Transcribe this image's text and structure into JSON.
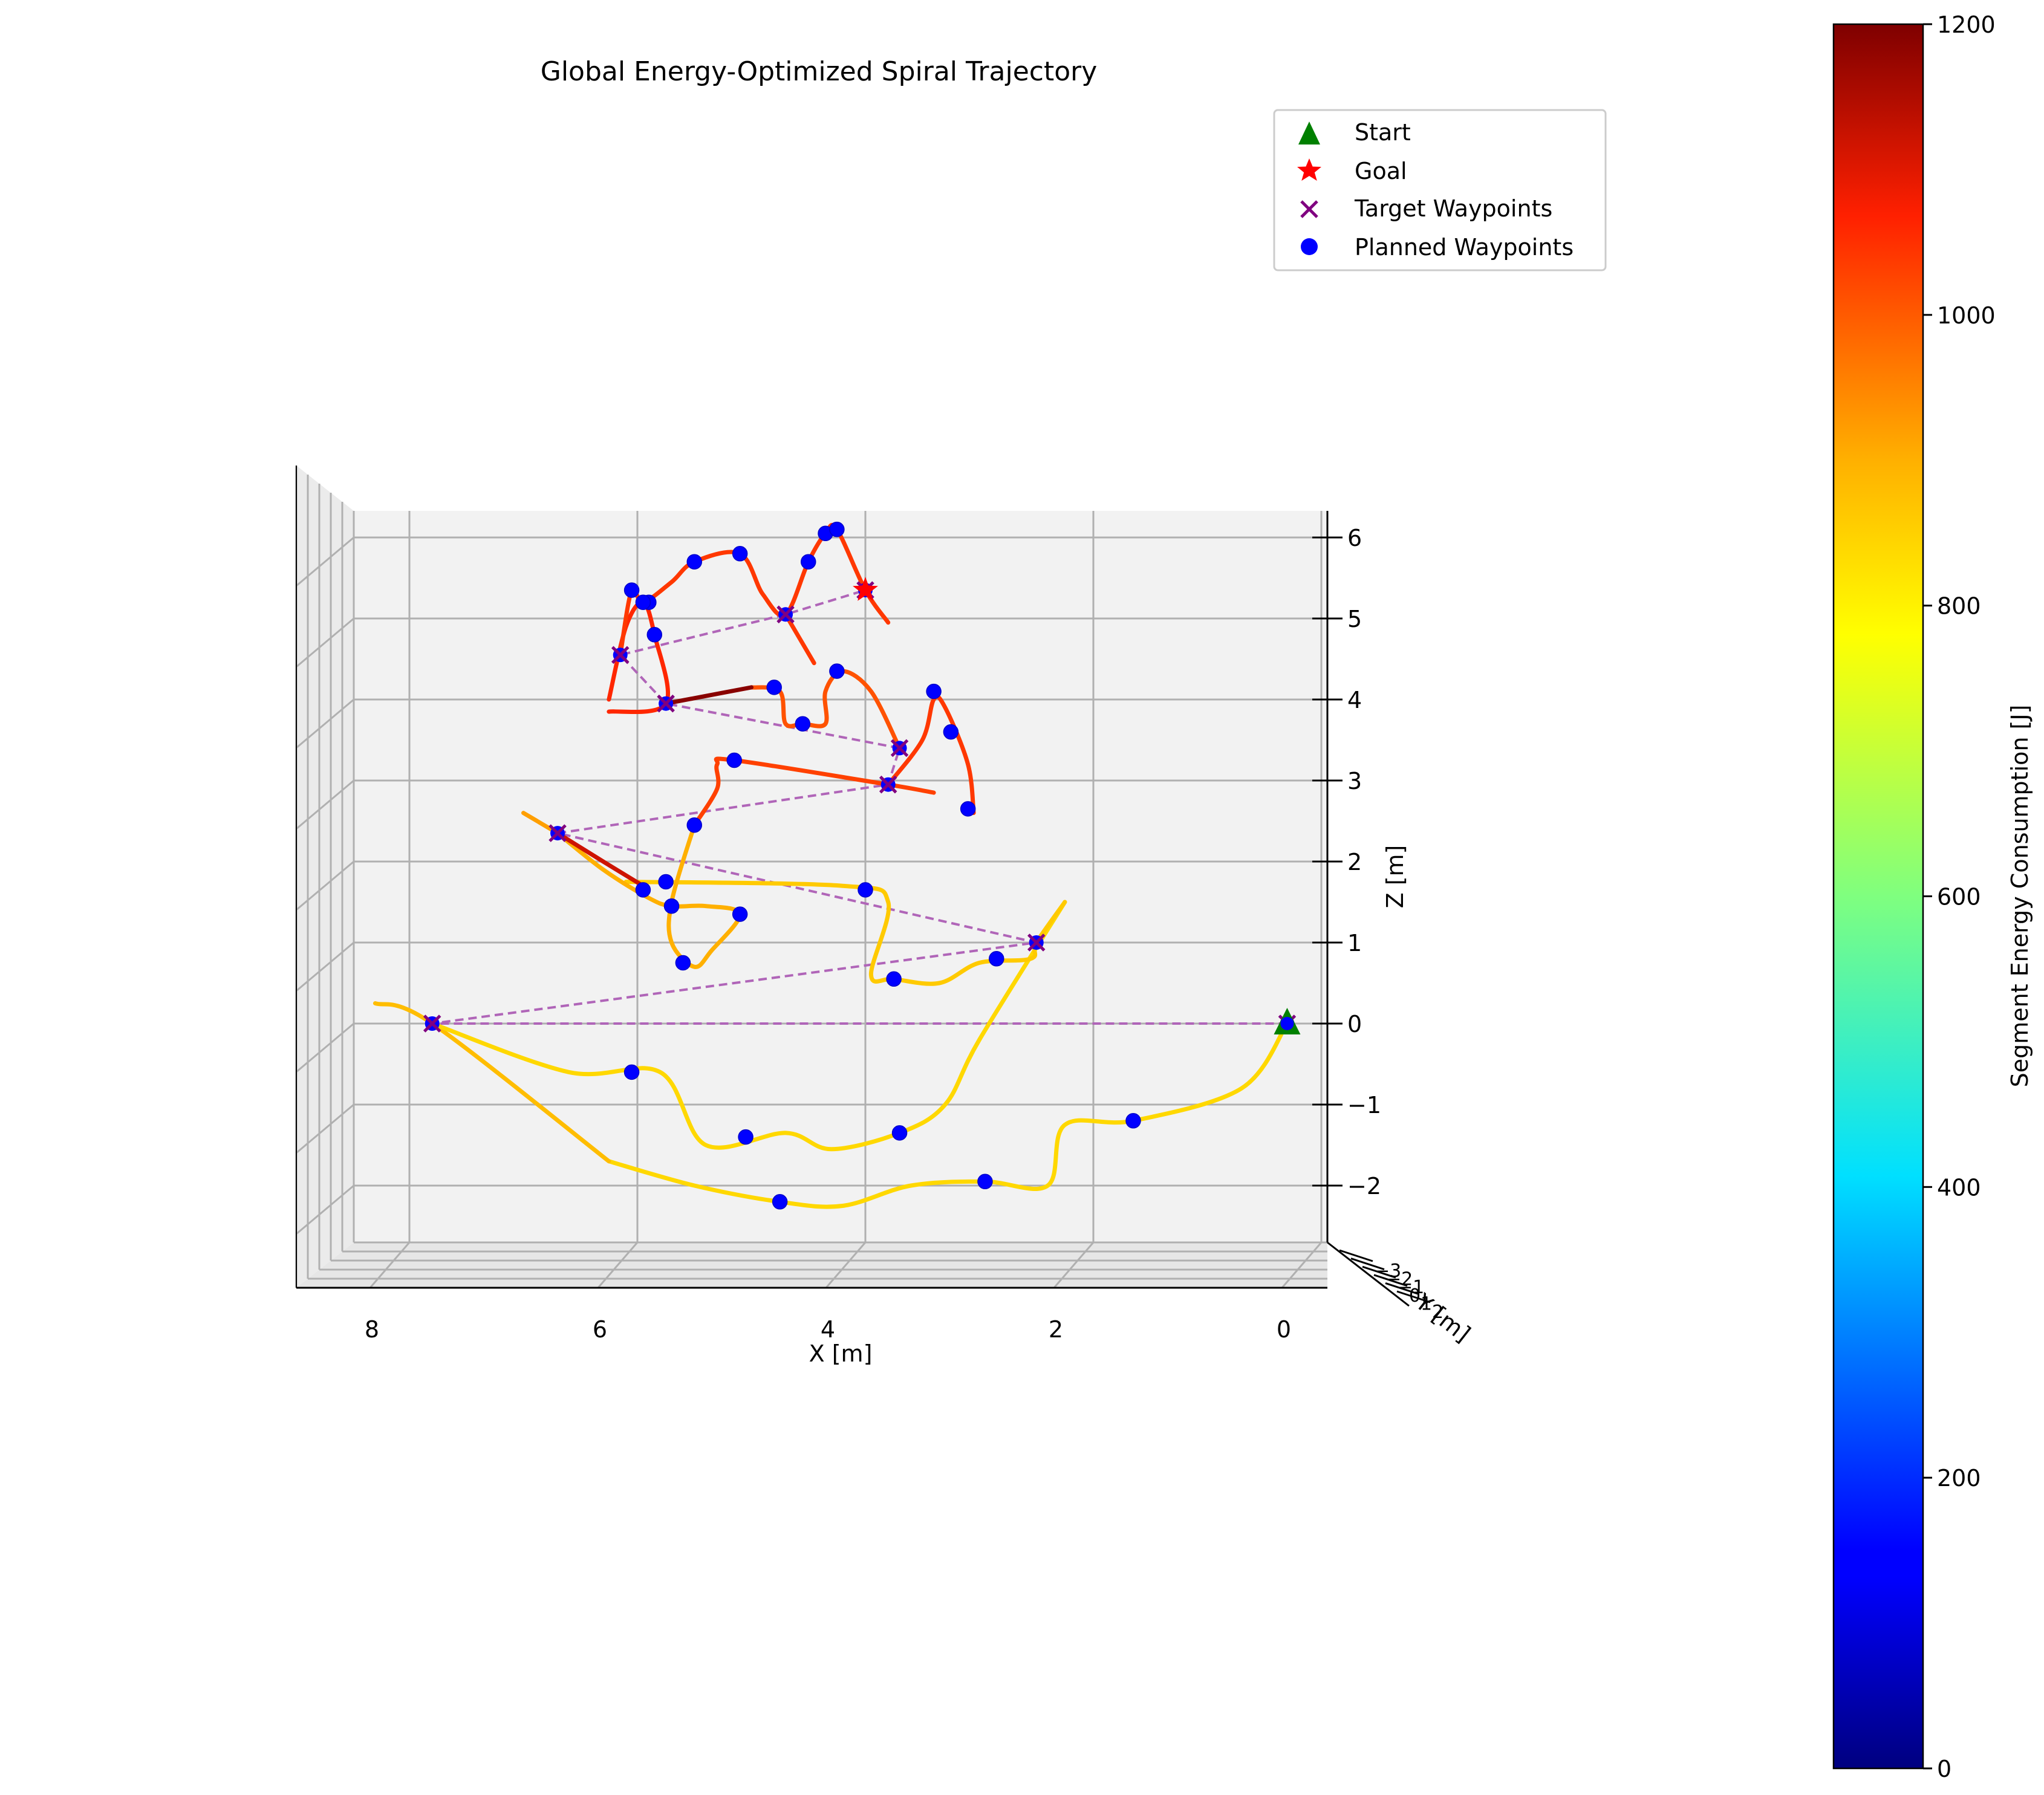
{
  "chart_data": {
    "type": "line",
    "projection": "3d",
    "title": "Global Energy-Optimized Spiral Trajectory",
    "xlabel": "X [m]",
    "ylabel": "Y [m]",
    "zlabel": "Z [m]",
    "xlim": [
      9,
      0
    ],
    "zlim": [
      -2.7,
      6.2
    ],
    "x_ticks": [
      "8",
      "6",
      "4",
      "2",
      "0"
    ],
    "z_ticks": [
      "6",
      "5",
      "4",
      "3",
      "2",
      "1",
      "0",
      "−1",
      "−2"
    ],
    "y_ticks": [
      "−3",
      "−2",
      "−1",
      "0",
      "1",
      "2"
    ],
    "grid": true,
    "legend": {
      "placement": "upper-right",
      "entries": [
        {
          "label": "Start",
          "marker": "triangle",
          "color": "#008000"
        },
        {
          "label": "Goal",
          "marker": "star",
          "color": "#ff0000"
        },
        {
          "label": "Target Waypoints",
          "marker": "x",
          "color": "#800080"
        },
        {
          "label": "Planned Waypoints",
          "marker": "circle",
          "color": "#0000ff"
        }
      ]
    },
    "colorbar": {
      "label": "Segment Energy Consumption [J]",
      "range": [
        0,
        1200
      ],
      "ticks": [
        "0",
        "200",
        "400",
        "600",
        "800",
        "1000",
        "1200"
      ],
      "colormap": "jet"
    },
    "start": {
      "x": 0.3,
      "z": 0.0
    },
    "goal": {
      "x": 4.0,
      "z": 5.35
    },
    "target_waypoints": [
      {
        "x": 0.3,
        "z": 0.0
      },
      {
        "x": 7.8,
        "z": 0.0
      },
      {
        "x": 2.5,
        "z": 1.0
      },
      {
        "x": 6.7,
        "z": 2.35
      },
      {
        "x": 3.8,
        "z": 2.95
      },
      {
        "x": 3.7,
        "z": 3.4
      },
      {
        "x": 5.75,
        "z": 3.95
      },
      {
        "x": 6.15,
        "z": 4.55
      },
      {
        "x": 4.7,
        "z": 5.05
      },
      {
        "x": 4.0,
        "z": 5.35
      }
    ],
    "planned_waypoints": [
      {
        "x": 1.65,
        "z": -1.2
      },
      {
        "x": 2.95,
        "z": -1.95
      },
      {
        "x": 4.75,
        "z": -2.2
      },
      {
        "x": 3.7,
        "z": -1.35
      },
      {
        "x": 5.05,
        "z": -1.4
      },
      {
        "x": 6.05,
        "z": -0.6
      },
      {
        "x": 2.85,
        "z": 0.8
      },
      {
        "x": 3.75,
        "z": 0.55
      },
      {
        "x": 4.0,
        "z": 1.65
      },
      {
        "x": 5.1,
        "z": 1.35
      },
      {
        "x": 5.6,
        "z": 0.75
      },
      {
        "x": 5.7,
        "z": 1.45
      },
      {
        "x": 5.95,
        "z": 1.65
      },
      {
        "x": 5.75,
        "z": 1.75
      },
      {
        "x": 5.5,
        "z": 2.45
      },
      {
        "x": 5.15,
        "z": 3.25
      },
      {
        "x": 3.1,
        "z": 2.65
      },
      {
        "x": 3.25,
        "z": 3.6
      },
      {
        "x": 3.4,
        "z": 4.1
      },
      {
        "x": 4.55,
        "z": 3.7
      },
      {
        "x": 4.25,
        "z": 4.35
      },
      {
        "x": 4.8,
        "z": 4.15
      },
      {
        "x": 5.85,
        "z": 4.8
      },
      {
        "x": 5.9,
        "z": 5.2
      },
      {
        "x": 5.95,
        "z": 5.2
      },
      {
        "x": 6.05,
        "z": 5.35
      },
      {
        "x": 5.5,
        "z": 5.7
      },
      {
        "x": 5.1,
        "z": 5.8
      },
      {
        "x": 4.5,
        "z": 5.7
      },
      {
        "x": 4.35,
        "z": 6.05
      },
      {
        "x": 4.25,
        "z": 6.1
      }
    ],
    "series": [
      {
        "energy": 840,
        "points": [
          {
            "x": 0.3,
            "z": 0.0
          },
          {
            "x": 0.7,
            "z": -0.8
          },
          {
            "x": 1.65,
            "z": -1.2
          },
          {
            "x": 2.25,
            "z": -1.25
          },
          {
            "x": 2.4,
            "z": -2.0
          },
          {
            "x": 2.95,
            "z": -1.95
          },
          {
            "x": 3.6,
            "z": -2.0
          },
          {
            "x": 4.2,
            "z": -2.25
          },
          {
            "x": 4.75,
            "z": -2.2
          },
          {
            "x": 5.5,
            "z": -2.0
          },
          {
            "x": 6.25,
            "z": -1.7
          }
        ]
      },
      {
        "energy": 880,
        "points": [
          {
            "x": 6.25,
            "z": -1.7
          },
          {
            "x": 7.8,
            "z": 0.0
          },
          {
            "x": 8.3,
            "z": 0.25
          }
        ]
      },
      {
        "energy": 840,
        "points": [
          {
            "x": 7.8,
            "z": 0.0
          },
          {
            "x": 6.6,
            "z": -0.6
          },
          {
            "x": 5.8,
            "z": -0.6
          },
          {
            "x": 5.4,
            "z": -1.5
          },
          {
            "x": 4.7,
            "z": -1.35
          },
          {
            "x": 4.3,
            "z": -1.55
          },
          {
            "x": 3.7,
            "z": -1.35
          },
          {
            "x": 3.3,
            "z": -1.0
          },
          {
            "x": 3.0,
            "z": -0.2
          },
          {
            "x": 2.25,
            "z": 1.5
          }
        ]
      },
      {
        "energy": 860,
        "points": [
          {
            "x": 2.25,
            "z": 1.5
          },
          {
            "x": 2.5,
            "z": 1.0
          },
          {
            "x": 2.55,
            "z": 0.8
          },
          {
            "x": 3.0,
            "z": 0.75
          },
          {
            "x": 3.35,
            "z": 0.5
          },
          {
            "x": 3.75,
            "z": 0.55
          },
          {
            "x": 3.95,
            "z": 0.6
          },
          {
            "x": 3.8,
            "z": 1.5
          },
          {
            "x": 4.2,
            "z": 1.7
          },
          {
            "x": 6.1,
            "z": 1.75
          }
        ]
      },
      {
        "energy": 900,
        "points": [
          {
            "x": 6.7,
            "z": 2.35
          },
          {
            "x": 6.3,
            "z": 1.9
          },
          {
            "x": 5.9,
            "z": 1.55
          },
          {
            "x": 5.7,
            "z": 1.45
          },
          {
            "x": 5.4,
            "z": 1.45
          },
          {
            "x": 5.1,
            "z": 1.35
          },
          {
            "x": 5.35,
            "z": 0.9
          },
          {
            "x": 5.5,
            "z": 0.7
          },
          {
            "x": 5.7,
            "z": 1.0
          },
          {
            "x": 5.7,
            "z": 1.5
          },
          {
            "x": 5.5,
            "z": 2.45
          }
        ]
      },
      {
        "energy": 1030,
        "points": [
          {
            "x": 5.5,
            "z": 2.45
          },
          {
            "x": 5.3,
            "z": 2.9
          },
          {
            "x": 5.3,
            "z": 3.2
          },
          {
            "x": 5.15,
            "z": 3.25
          },
          {
            "x": 3.8,
            "z": 2.95
          },
          {
            "x": 3.4,
            "z": 2.85
          }
        ]
      },
      {
        "energy": 1120,
        "points": [
          {
            "x": 6.7,
            "z": 2.35
          },
          {
            "x": 6.3,
            "z": 2.0
          },
          {
            "x": 5.95,
            "z": 1.7
          }
        ]
      },
      {
        "energy": 920,
        "points": [
          {
            "x": 7.0,
            "z": 2.6
          },
          {
            "x": 6.7,
            "z": 2.35
          }
        ]
      },
      {
        "energy": 1040,
        "points": [
          {
            "x": 3.8,
            "z": 2.95
          },
          {
            "x": 3.5,
            "z": 3.5
          },
          {
            "x": 3.4,
            "z": 4.0
          },
          {
            "x": 3.3,
            "z": 3.9
          },
          {
            "x": 3.1,
            "z": 3.2
          },
          {
            "x": 3.05,
            "z": 2.6
          }
        ]
      },
      {
        "energy": 1010,
        "points": [
          {
            "x": 3.7,
            "z": 3.4
          },
          {
            "x": 3.95,
            "z": 4.1
          },
          {
            "x": 4.2,
            "z": 4.35
          },
          {
            "x": 4.35,
            "z": 4.1
          },
          {
            "x": 4.35,
            "z": 3.7
          },
          {
            "x": 4.55,
            "z": 3.7
          },
          {
            "x": 4.7,
            "z": 3.7
          },
          {
            "x": 4.75,
            "z": 4.1
          },
          {
            "x": 5.0,
            "z": 4.15
          }
        ]
      },
      {
        "energy": 1190,
        "points": [
          {
            "x": 5.0,
            "z": 4.15
          },
          {
            "x": 5.75,
            "z": 3.95
          }
        ]
      },
      {
        "energy": 1060,
        "points": [
          {
            "x": 6.25,
            "z": 3.85
          },
          {
            "x": 5.75,
            "z": 3.95
          },
          {
            "x": 5.85,
            "z": 4.8
          },
          {
            "x": 5.95,
            "z": 5.2
          },
          {
            "x": 6.1,
            "z": 4.9
          },
          {
            "x": 6.25,
            "z": 4.0
          }
        ]
      },
      {
        "energy": 1040,
        "points": [
          {
            "x": 6.15,
            "z": 4.55
          },
          {
            "x": 6.05,
            "z": 5.35
          },
          {
            "x": 5.95,
            "z": 5.2
          },
          {
            "x": 5.7,
            "z": 5.45
          },
          {
            "x": 5.5,
            "z": 5.7
          },
          {
            "x": 5.1,
            "z": 5.8
          },
          {
            "x": 4.9,
            "z": 5.3
          },
          {
            "x": 4.7,
            "z": 5.05
          },
          {
            "x": 4.5,
            "z": 5.7
          },
          {
            "x": 4.35,
            "z": 6.05
          },
          {
            "x": 4.25,
            "z": 6.1
          },
          {
            "x": 4.0,
            "z": 5.35
          },
          {
            "x": 3.8,
            "z": 4.95
          }
        ]
      },
      {
        "energy": 1040,
        "points": [
          {
            "x": 4.7,
            "z": 5.05
          },
          {
            "x": 4.45,
            "z": 4.45
          }
        ]
      }
    ]
  }
}
